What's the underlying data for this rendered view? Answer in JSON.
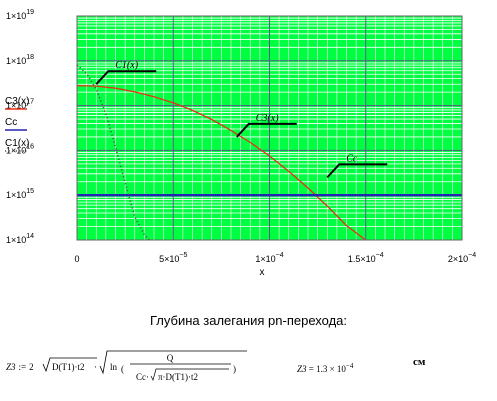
{
  "chart_data": {
    "type": "line",
    "xlabel": "x",
    "ylabel": "",
    "xlim": [
      0,
      0.0002
    ],
    "ylim": [
      100000000000000.0,
      1e+19
    ],
    "yscale": "log",
    "grid": true,
    "x_ticks": [
      {
        "value": 0,
        "label": "0"
      },
      {
        "value": 5e-05,
        "label": "5×10",
        "exp": "−5"
      },
      {
        "value": 0.0001,
        "label": "1×10",
        "exp": "−4"
      },
      {
        "value": 0.00015,
        "label": "1.5×10",
        "exp": "−4"
      },
      {
        "value": 0.0002,
        "label": "2×10",
        "exp": "−4"
      }
    ],
    "y_ticks": [
      {
        "value": 100000000000000.0,
        "label": "1×10",
        "exp": "14"
      },
      {
        "value": 1000000000000000.0,
        "label": "1×10",
        "exp": "15"
      },
      {
        "value": 1e+16,
        "label": "1×10",
        "exp": "16"
      },
      {
        "value": 1e+17,
        "label": "1×10",
        "exp": "17"
      },
      {
        "value": 1e+18,
        "label": "1×10",
        "exp": "18"
      },
      {
        "value": 1e+19,
        "label": "1×10",
        "exp": "19"
      }
    ],
    "legend": [
      {
        "name": "C3(x)",
        "color": "#e8311a",
        "style": "solid"
      },
      {
        "name": "Cc",
        "color": "#2323b4",
        "style": "solid"
      },
      {
        "name": "C1(x)",
        "color": "#555555",
        "style": "dotted"
      }
    ],
    "series": [
      {
        "name": "C3(x)",
        "color": "#e8311a",
        "style": "solid",
        "x": [
          0,
          1e-05,
          2e-05,
          3e-05,
          4e-05,
          5e-05,
          6e-05,
          7e-05,
          8e-05,
          9e-05,
          0.0001,
          0.00011,
          0.00012,
          0.00013,
          0.00014,
          0.00015
        ],
        "y": [
          2.8e+17,
          2.72e+17,
          2.45e+17,
          2.02e+17,
          1.58e+17,
          1.15e+17,
          7.8e+16,
          4.9e+16,
          2.8e+16,
          1.5e+16,
          7500000000000000.0,
          3400000000000000.0,
          1450000000000000.0,
          570000000000000.0,
          210000000000000.0,
          70000000000000.0
        ]
      },
      {
        "name": "Cc",
        "color": "#2323b4",
        "style": "solid",
        "x": [
          0,
          0.0002
        ],
        "y": [
          1000000000000000.0,
          1000000000000000.0
        ]
      },
      {
        "name": "C1(x)",
        "color": "#555555",
        "style": "dotted",
        "x": [
          0,
          5e-06,
          1e-05,
          1.5e-05,
          2e-05,
          2.5e-05,
          3e-05,
          3.5e-05,
          3.75e-05
        ],
        "y": [
          8e+17,
          5.2e+17,
          2.3e+17,
          6.5e+16,
          1.2e+16,
          1900000000000000.0,
          330000000000000.0,
          130000000000000.0,
          100000000000000.0
        ]
      }
    ],
    "annotations": [
      {
        "text": "C1(x)",
        "anchor_x": 1e-05,
        "anchor_y": 3e+17
      },
      {
        "text": "C3(x)",
        "anchor_x": 8.3e-05,
        "anchor_y": 2e+16
      },
      {
        "text": "Cc",
        "anchor_x": 0.00013,
        "anchor_y": 2500000000000000.0
      }
    ],
    "colors": {
      "plot_bg": "#00ff40",
      "major_grid": "#5a5a8a",
      "minor_grid": "#ffffff"
    }
  },
  "caption": "Глубина залегания pn-перехода:",
  "formula": {
    "lhs": "Z3",
    "assign": ":=",
    "coef": "2",
    "sqrt_inner": "D(T1)·t2",
    "ln": "ln",
    "num": "Q",
    "den_left": "Cc·",
    "den_sqrt": "π·D(T1)·t2"
  },
  "result": {
    "lhs": "Z3",
    "eq": "=",
    "mantissa": "1.3 × 10",
    "exp": "−4"
  },
  "unit": "см"
}
